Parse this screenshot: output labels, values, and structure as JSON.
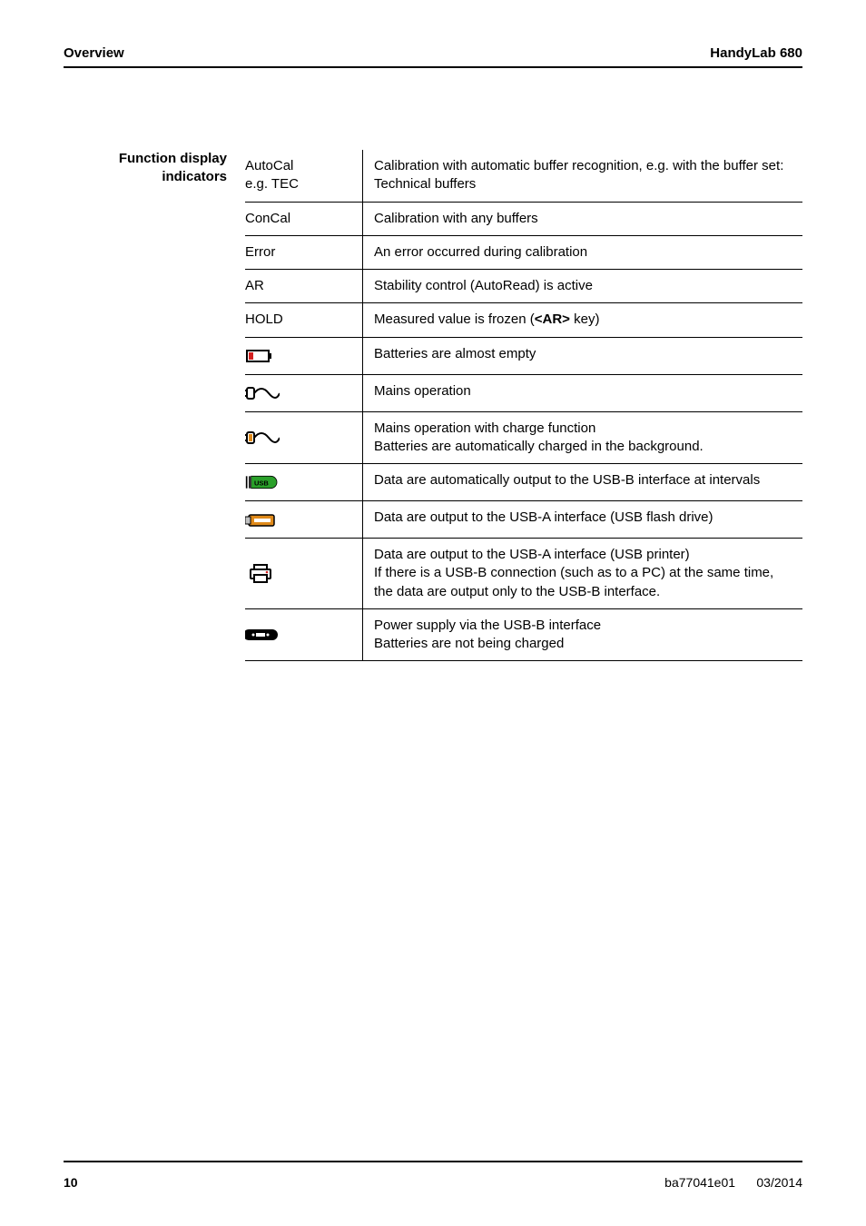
{
  "header": {
    "left": "Overview",
    "right": "HandyLab 680"
  },
  "side_label": {
    "line1": "Function display",
    "line2": "indicators"
  },
  "colors": {
    "text": "#000000",
    "rule": "#000000",
    "bg": "#ffffff",
    "red": "#d32020",
    "orange": "#e08a1a",
    "green": "#2aa02a",
    "icon_black": "#000000"
  },
  "rows": [
    {
      "key_type": "text",
      "key": "AutoCal\ne.g. TEC",
      "desc": "Calibration with automatic buffer recognition, e.g. with the buffer set: Technical buffers"
    },
    {
      "key_type": "text",
      "key": "ConCal",
      "desc": "Calibration with any buffers"
    },
    {
      "key_type": "text",
      "key": "Error",
      "desc": "An error occurred during calibration"
    },
    {
      "key_type": "text",
      "key": "AR",
      "desc": "Stability control (AutoRead) is active"
    },
    {
      "key_type": "text",
      "key": "HOLD",
      "desc_pre": "Measured value is frozen (",
      "desc_bold": "<AR>",
      "desc_post": " key)"
    },
    {
      "key_type": "icon",
      "icon": "battery-empty",
      "desc": "Batteries are almost empty"
    },
    {
      "key_type": "icon",
      "icon": "plug-mains",
      "desc": "Mains operation"
    },
    {
      "key_type": "icon",
      "icon": "plug-charge",
      "desc": "Mains operation with charge function\nBatteries are automatically charged in the background."
    },
    {
      "key_type": "icon",
      "icon": "usb-b-interval",
      "desc": "Data are automatically output to the USB-B interface at intervals"
    },
    {
      "key_type": "icon",
      "icon": "usb-flash",
      "desc": "Data are output to the USB-A interface (USB flash drive)"
    },
    {
      "key_type": "icon",
      "icon": "printer",
      "desc": "Data are output to the USB-A interface (USB printer)\nIf there is a USB-B connection (such as to a PC) at the same time, the data are output only to the USB-B interface."
    },
    {
      "key_type": "icon",
      "icon": "usb-power",
      "desc": "Power supply via the USB-B interface\nBatteries are not being charged"
    }
  ],
  "footer": {
    "page": "10",
    "doc": "ba77041e01",
    "date": "03/2014"
  }
}
